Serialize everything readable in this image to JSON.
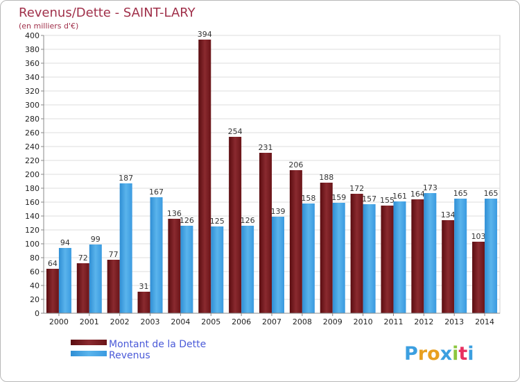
{
  "chart_data": {
    "type": "bar",
    "title": "Revenus/Dette - SAINT-LARY",
    "subtitle": "(en milliers d'€)",
    "xlabel": "",
    "ylabel": "",
    "ylim": [
      0,
      400
    ],
    "yticks": [
      "0",
      "20",
      "40",
      "60",
      "80",
      "100",
      "120",
      "140",
      "160",
      "180",
      "200",
      "220",
      "240",
      "260",
      "280",
      "300",
      "320",
      "340",
      "360",
      "380",
      "400"
    ],
    "grid": true,
    "legend_position": "bottom-left",
    "categories": [
      "2000",
      "2001",
      "2002",
      "2003",
      "2004",
      "2005",
      "2006",
      "2007",
      "2008",
      "2009",
      "2010",
      "2011",
      "2012",
      "2013",
      "2014"
    ],
    "series": [
      {
        "name": "Montant de la Dette",
        "color": "#7a1a1f",
        "values": [
          64,
          72,
          77,
          31,
          136,
          394,
          254,
          231,
          206,
          188,
          172,
          155,
          164,
          134,
          103
        ],
        "labels": [
          "64",
          "72",
          "77",
          "31",
          "136",
          "394",
          "254",
          "231",
          "206",
          "188",
          "172",
          "155",
          "164",
          "134",
          "103"
        ]
      },
      {
        "name": "Revenus",
        "color": "#3c9fe0",
        "values": [
          94,
          99,
          187,
          167,
          126,
          125,
          126,
          139,
          158,
          159,
          157,
          161,
          173,
          165,
          165
        ],
        "labels": [
          "94",
          "99",
          "187",
          "167",
          "126",
          "125",
          "126",
          "139",
          "158",
          "159",
          "157",
          "161",
          "173",
          "165",
          "165"
        ]
      }
    ]
  },
  "logo": {
    "letters": [
      "P",
      "r",
      "o",
      "x",
      "i",
      "t",
      "i"
    ],
    "colors": [
      "#3c9fe0",
      "#e8a020",
      "#e8a020",
      "#3c9fe0",
      "#8cc63f",
      "#e83060",
      "#3c9fe0"
    ]
  }
}
